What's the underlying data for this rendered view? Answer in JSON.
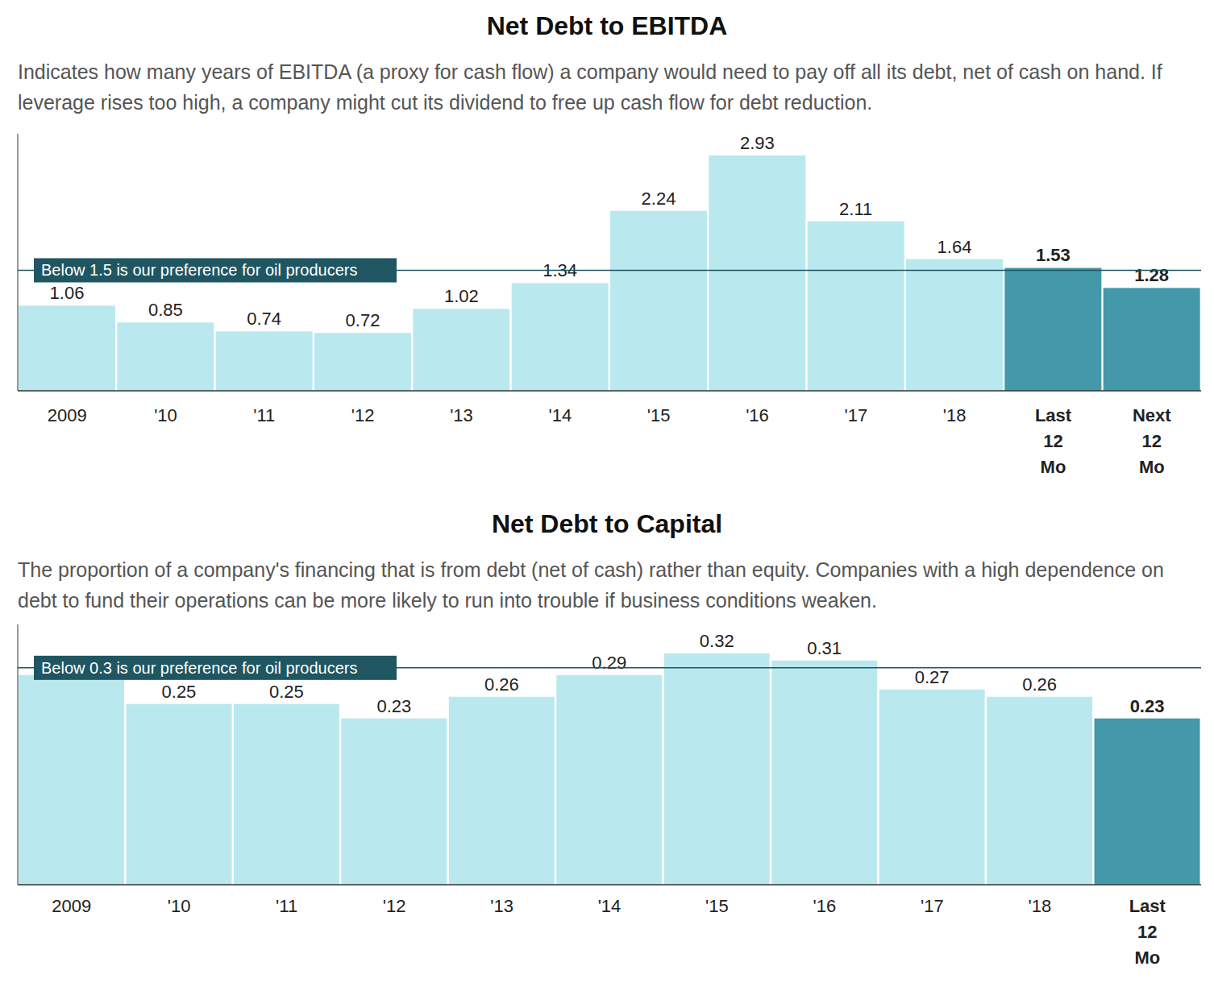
{
  "chart_data": [
    {
      "type": "bar",
      "title": "Net Debt to EBITDA",
      "subtitle": "Indicates how many years of EBITDA (a proxy for cash flow) a company would need to pay off all its debt, net of cash on hand. If leverage rises too high, a company might cut its dividend to free up cash flow for debt reduction.",
      "categories": [
        "2009",
        "'10",
        "'11",
        "'12",
        "'13",
        "'14",
        "'15",
        "'16",
        "'17",
        "'18",
        "Last 12 Mo",
        "Next 12 Mo"
      ],
      "values": [
        1.06,
        0.85,
        0.74,
        0.72,
        1.02,
        1.34,
        2.24,
        2.93,
        2.11,
        1.64,
        1.53,
        1.28
      ],
      "colors": [
        "#b9e9ef",
        "#b9e9ef",
        "#b9e9ef",
        "#b9e9ef",
        "#b9e9ef",
        "#b9e9ef",
        "#b9e9ef",
        "#b9e9ef",
        "#b9e9ef",
        "#b9e9ef",
        "#4399aa",
        "#4399aa"
      ],
      "ylim": [
        0,
        3.2
      ],
      "grid": false,
      "tick_labels": "x",
      "data_labels": true,
      "annotations": [
        {
          "y": 1.5,
          "text": "Below 1.5 is our preference for oil producers"
        }
      ]
    },
    {
      "type": "bar",
      "title": "Net Debt to Capital",
      "subtitle": "The proportion of a company's financing that is from debt (net of cash) rather than equity. Companies with a high dependence on debt to fund their operations can be more likely to run into trouble if business conditions weaken.",
      "categories": [
        "2009",
        "'10",
        "'11",
        "'12",
        "'13",
        "'14",
        "'15",
        "'16",
        "'17",
        "'18",
        "Last 12 Mo"
      ],
      "values": [
        0.29,
        0.25,
        0.25,
        0.23,
        0.26,
        0.29,
        0.32,
        0.31,
        0.27,
        0.26,
        0.23
      ],
      "value_labels": [
        null,
        "0.25",
        "0.25",
        "0.23",
        "0.26",
        "0.29",
        "0.32",
        "0.31",
        "0.27",
        "0.26",
        "0.23"
      ],
      "colors": [
        "#b9e9ef",
        "#b9e9ef",
        "#b9e9ef",
        "#b9e9ef",
        "#b9e9ef",
        "#b9e9ef",
        "#b9e9ef",
        "#b9e9ef",
        "#b9e9ef",
        "#b9e9ef",
        "#4399aa"
      ],
      "ylim": [
        0,
        0.36
      ],
      "grid": false,
      "tick_labels": "x",
      "data_labels": true,
      "annotations": [
        {
          "y": 0.3,
          "text": "Below 0.3 is our preference for oil producers"
        }
      ]
    }
  ]
}
